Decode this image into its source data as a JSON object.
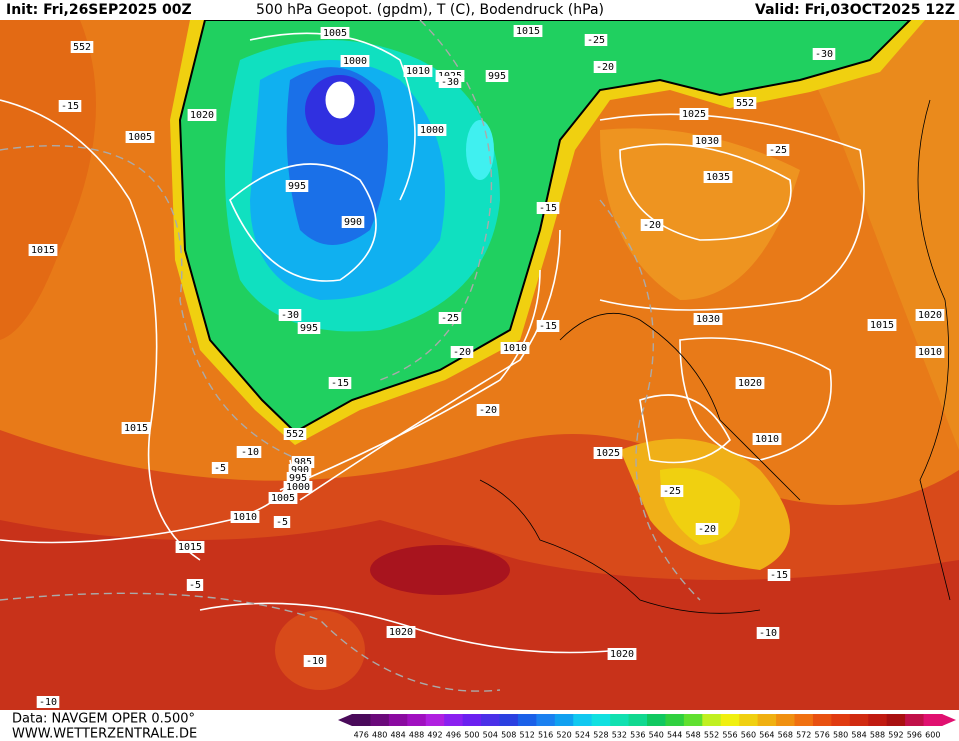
{
  "header": {
    "init": "Init: Fri,26SEP2025 00Z",
    "title": "500 hPa Geopot. (gpdm), T (C), Bodendruck (hPa)",
    "valid": "Valid: Fri,03OCT2025 12Z"
  },
  "footer": {
    "source": "Data: NAVGEM OPER 0.500°",
    "website": "WWW.WETTERZENTRALE.DE"
  },
  "colorbar": {
    "labels": [
      "476",
      "480",
      "484",
      "488",
      "492",
      "496",
      "500",
      "504",
      "508",
      "512",
      "516",
      "520",
      "524",
      "528",
      "532",
      "536",
      "540",
      "544",
      "548",
      "552",
      "556",
      "560",
      "564",
      "568",
      "572",
      "576",
      "580",
      "584",
      "588",
      "592",
      "596",
      "600"
    ],
    "colors": [
      "#4a0a5a",
      "#6a0a7a",
      "#8a0aa0",
      "#a010c0",
      "#b020e0",
      "#8a20f0",
      "#6a20f0",
      "#4a30e8",
      "#2a40e0",
      "#1a60e8",
      "#1a80f0",
      "#10a0f0",
      "#10c8f0",
      "#10e0e0",
      "#10e0b0",
      "#10d890",
      "#10c860",
      "#30d040",
      "#60e030",
      "#c0f020",
      "#f0f010",
      "#f0d010",
      "#f0b010",
      "#f09010",
      "#f07010",
      "#e85010",
      "#e03a10",
      "#d02a10",
      "#c01a10",
      "#a81010",
      "#c01048",
      "#e01070"
    ]
  },
  "isobar_labels": [
    "552",
    "1005",
    "1000",
    "1010",
    "1015",
    "995",
    "1005",
    "1000",
    "995",
    "990",
    "995",
    "1020",
    "1025",
    "1030",
    "1035",
    "1030",
    "1015",
    "1020",
    "1010",
    "1020",
    "1010",
    "1025",
    "1010",
    "1015",
    "985",
    "990",
    "995",
    "1000",
    "1005",
    "1010",
    "1015",
    "1020",
    "1020",
    "1015",
    "1025",
    "-30",
    "-25",
    "-20",
    "-20",
    "-15",
    "-15",
    "-10",
    "-5",
    "-5",
    "-10",
    "-10",
    "-25",
    "-20",
    "-15",
    "-10",
    "-20",
    "-25",
    "-30",
    "-15",
    "552",
    "552",
    "-30",
    "-25",
    "-20",
    "-15",
    "-5",
    "-10"
  ]
}
